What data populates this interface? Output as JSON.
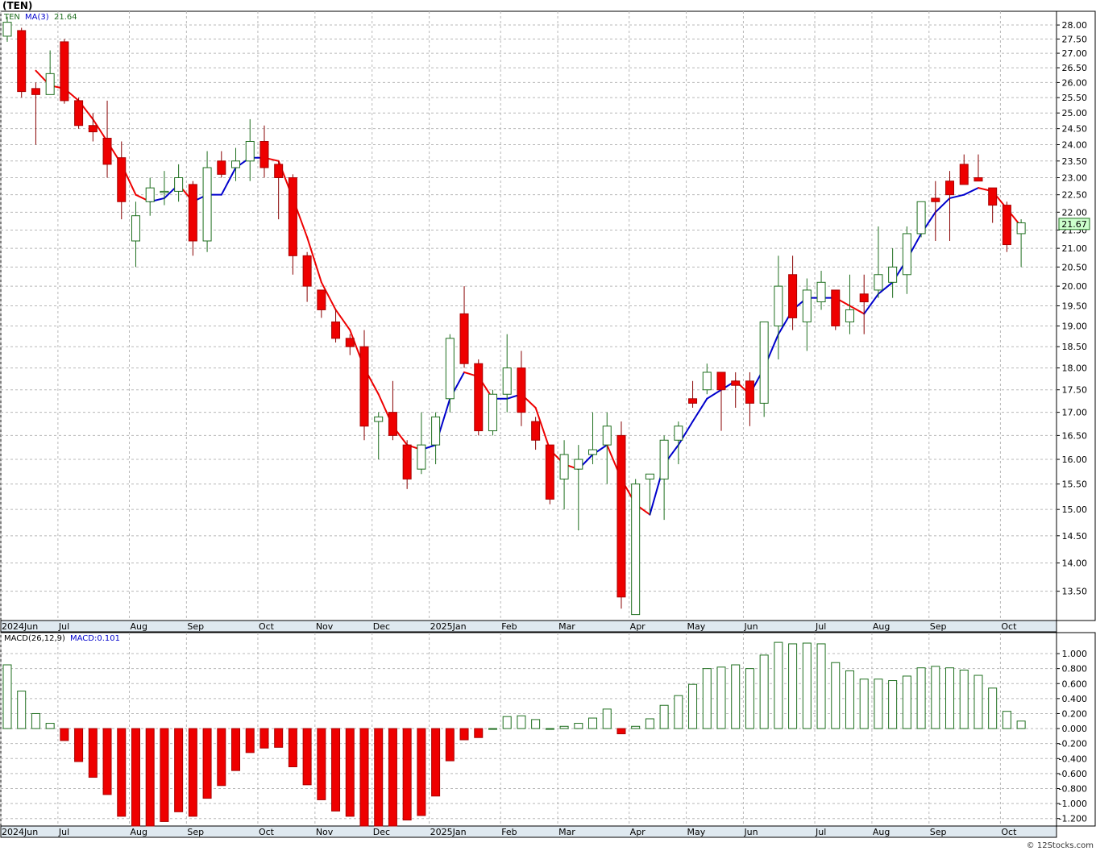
{
  "title": "(TEN)",
  "footer": "© 12Stocks.com",
  "colors": {
    "up_body": "#ffffff",
    "up_outline": "#1f6f1f",
    "down_body": "#ee0000",
    "ma_up": "#0000cc",
    "ma_down": "#ee0000",
    "grid": "#b8b8b8",
    "last_price_bg": "#ccffcc",
    "hist_pos_fill": "#ffffff",
    "hist_pos_stroke": "#1f6f1f",
    "hist_neg": "#ee0000"
  },
  "chart_data": [
    {
      "type": "candlestick",
      "panel": "price",
      "legend": {
        "symbol": "TEN",
        "ma_label": "MA(3)",
        "ma_value": "21.64"
      },
      "last_price": "21.67",
      "ylim": [
        13.0,
        28.5
      ],
      "y_scale": "log",
      "y_ticks": [
        "28.00",
        "27.50",
        "27.00",
        "26.50",
        "26.00",
        "25.50",
        "25.00",
        "24.50",
        "24.00",
        "23.50",
        "23.00",
        "22.50",
        "22.00",
        "21.50",
        "21.00",
        "20.50",
        "20.00",
        "19.50",
        "19.00",
        "18.50",
        "18.00",
        "17.50",
        "17.00",
        "16.50",
        "16.00",
        "15.50",
        "15.00",
        "14.50",
        "14.00",
        "13.50"
      ],
      "x_labels": [
        {
          "label": "2024Jun",
          "week": 0
        },
        {
          "label": "Jul",
          "week": 4
        },
        {
          "label": "Aug",
          "week": 9
        },
        {
          "label": "Sep",
          "week": 13
        },
        {
          "label": "Oct",
          "week": 18
        },
        {
          "label": "Nov",
          "week": 22
        },
        {
          "label": "Dec",
          "week": 26
        },
        {
          "label": "2025Jan",
          "week": 30
        },
        {
          "label": "Feb",
          "week": 35
        },
        {
          "label": "Mar",
          "week": 39
        },
        {
          "label": "Apr",
          "week": 44
        },
        {
          "label": "May",
          "week": 48
        },
        {
          "label": "Jun",
          "week": 52
        },
        {
          "label": "Jul",
          "week": 57
        },
        {
          "label": "Aug",
          "week": 61
        },
        {
          "label": "Sep",
          "week": 65
        },
        {
          "label": "Oct",
          "week": 70
        }
      ],
      "ohlc": [
        [
          27.6,
          28.3,
          27.4,
          28.1
        ],
        [
          27.8,
          27.9,
          25.5,
          25.7
        ],
        [
          25.8,
          26.0,
          24.0,
          25.6
        ],
        [
          25.6,
          27.1,
          25.6,
          26.3
        ],
        [
          27.4,
          27.5,
          25.3,
          25.4
        ],
        [
          25.4,
          25.5,
          24.5,
          24.6
        ],
        [
          24.6,
          25.0,
          24.1,
          24.4
        ],
        [
          24.2,
          25.4,
          23.0,
          23.4
        ],
        [
          23.6,
          24.1,
          21.8,
          22.3
        ],
        [
          21.2,
          22.3,
          20.5,
          21.9
        ],
        [
          22.3,
          23.0,
          21.9,
          22.7
        ],
        [
          22.6,
          23.2,
          22.2,
          22.6
        ],
        [
          22.6,
          23.4,
          22.3,
          23.0
        ],
        [
          22.8,
          22.9,
          20.8,
          21.2
        ],
        [
          21.2,
          23.8,
          20.9,
          23.3
        ],
        [
          23.5,
          23.8,
          23.0,
          23.1
        ],
        [
          23.3,
          23.9,
          22.9,
          23.5
        ],
        [
          23.5,
          24.8,
          22.9,
          24.1
        ],
        [
          24.1,
          24.6,
          23.0,
          23.3
        ],
        [
          23.4,
          23.5,
          21.8,
          23.0
        ],
        [
          23.0,
          23.1,
          20.3,
          20.8
        ],
        [
          20.8,
          20.9,
          19.6,
          20.0
        ],
        [
          19.9,
          19.9,
          19.2,
          19.4
        ],
        [
          19.1,
          19.4,
          18.6,
          18.7
        ],
        [
          18.7,
          18.8,
          18.3,
          18.5
        ],
        [
          18.5,
          18.9,
          16.4,
          16.7
        ],
        [
          16.8,
          17.0,
          16.0,
          16.9
        ],
        [
          17.0,
          17.7,
          16.4,
          16.5
        ],
        [
          16.3,
          16.4,
          15.4,
          15.6
        ],
        [
          15.8,
          17.0,
          15.7,
          16.3
        ],
        [
          16.3,
          17.0,
          15.9,
          16.9
        ],
        [
          17.3,
          18.8,
          17.0,
          18.7
        ],
        [
          19.3,
          20.0,
          18.0,
          18.1
        ],
        [
          18.1,
          18.2,
          16.5,
          16.6
        ],
        [
          16.6,
          17.5,
          16.5,
          17.4
        ],
        [
          17.4,
          18.8,
          17.0,
          18.0
        ],
        [
          18.0,
          18.4,
          16.7,
          17.0
        ],
        [
          16.8,
          16.9,
          16.2,
          16.4
        ],
        [
          16.3,
          16.3,
          15.1,
          15.2
        ],
        [
          15.6,
          16.4,
          15.0,
          16.1
        ],
        [
          15.8,
          16.3,
          14.6,
          16.0
        ],
        [
          16.1,
          17.0,
          15.9,
          16.2
        ],
        [
          16.3,
          17.0,
          15.5,
          16.7
        ],
        [
          16.5,
          16.8,
          13.2,
          13.4
        ],
        [
          13.1,
          15.6,
          13.1,
          15.5
        ],
        [
          15.6,
          15.7,
          14.9,
          15.7
        ],
        [
          15.6,
          16.5,
          14.8,
          16.4
        ],
        [
          16.4,
          16.8,
          15.9,
          16.7
        ],
        [
          17.3,
          17.7,
          17.1,
          17.2
        ],
        [
          17.5,
          18.1,
          17.4,
          17.9
        ],
        [
          17.9,
          17.9,
          16.6,
          17.5
        ],
        [
          17.7,
          17.9,
          17.1,
          17.6
        ],
        [
          17.7,
          17.9,
          16.7,
          17.2
        ],
        [
          17.2,
          19.1,
          16.9,
          19.1
        ],
        [
          19.0,
          20.8,
          18.2,
          20.0
        ],
        [
          20.3,
          20.8,
          18.9,
          19.2
        ],
        [
          19.1,
          20.2,
          18.4,
          19.9
        ],
        [
          19.6,
          20.4,
          19.4,
          20.1
        ],
        [
          19.9,
          19.9,
          18.9,
          19.0
        ],
        [
          19.1,
          20.3,
          18.8,
          19.4
        ],
        [
          19.8,
          20.3,
          18.8,
          19.6
        ],
        [
          19.9,
          21.6,
          19.7,
          20.3
        ],
        [
          20.1,
          21.0,
          19.7,
          20.5
        ],
        [
          20.3,
          21.6,
          19.8,
          21.4
        ],
        [
          21.4,
          22.3,
          21.3,
          22.3
        ],
        [
          22.4,
          22.9,
          21.2,
          22.3
        ],
        [
          22.9,
          23.2,
          21.2,
          22.5
        ],
        [
          23.4,
          23.7,
          22.8,
          22.8
        ],
        [
          23.0,
          23.7,
          22.9,
          22.9
        ],
        [
          22.7,
          22.7,
          21.7,
          22.2
        ],
        [
          22.2,
          22.3,
          20.9,
          21.1
        ],
        [
          21.4,
          21.8,
          20.5,
          21.7
        ]
      ],
      "ma3": [
        null,
        null,
        26.4,
        25.9,
        25.8,
        25.4,
        24.8,
        24.1,
        23.4,
        22.5,
        22.3,
        22.4,
        22.8,
        22.3,
        22.5,
        22.5,
        23.3,
        23.6,
        23.6,
        23.5,
        22.4,
        21.3,
        20.1,
        19.4,
        18.9,
        18.0,
        17.4,
        16.7,
        16.3,
        16.2,
        16.3,
        17.3,
        17.9,
        17.8,
        17.3,
        17.3,
        17.4,
        17.1,
        16.2,
        15.9,
        15.8,
        16.1,
        16.3,
        15.6,
        15.1,
        14.9,
        15.9,
        16.3,
        16.8,
        17.3,
        17.5,
        17.7,
        17.4,
        18.0,
        18.8,
        19.4,
        19.7,
        19.7,
        19.7,
        19.5,
        19.3,
        19.8,
        20.1,
        20.7,
        21.4,
        22.0,
        22.4,
        22.5,
        22.7,
        22.6,
        22.1,
        21.6
      ]
    },
    {
      "type": "bar",
      "panel": "macd",
      "legend": {
        "label": "MACD(26,12,9)",
        "value_label": "MACD:0.101"
      },
      "ylim": [
        -1.3,
        1.28
      ],
      "y_ticks": [
        "1.000",
        "0.800",
        "0.600",
        "0.400",
        "0.200",
        "0.000",
        "-0.200",
        "-0.400",
        "-0.600",
        "-0.800",
        "-1.000",
        "-1.200"
      ],
      "values": [
        0.85,
        0.5,
        0.2,
        0.07,
        -0.16,
        -0.44,
        -0.65,
        -0.88,
        -1.17,
        -1.36,
        -1.39,
        -1.24,
        -1.11,
        -1.17,
        -0.93,
        -0.76,
        -0.56,
        -0.32,
        -0.26,
        -0.25,
        -0.51,
        -0.75,
        -0.95,
        -1.1,
        -1.17,
        -1.33,
        -1.38,
        -1.34,
        -1.22,
        -1.16,
        -0.9,
        -0.43,
        -0.15,
        -0.12,
        0.0,
        0.16,
        0.17,
        0.12,
        0.0,
        0.03,
        0.07,
        0.14,
        0.26,
        -0.07,
        0.03,
        0.13,
        0.31,
        0.44,
        0.59,
        0.8,
        0.82,
        0.85,
        0.8,
        0.98,
        1.15,
        1.13,
        1.14,
        1.13,
        0.88,
        0.77,
        0.66,
        0.66,
        0.64,
        0.7,
        0.81,
        0.83,
        0.81,
        0.78,
        0.71,
        0.54,
        0.23,
        0.1
      ]
    }
  ]
}
